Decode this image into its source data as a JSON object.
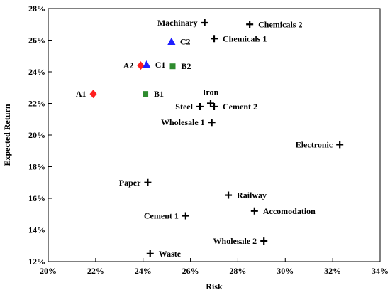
{
  "chart_data": {
    "type": "scatter",
    "title": "",
    "xlabel": "Risk",
    "ylabel": "Expected Return",
    "xlim": [
      0.2,
      0.34
    ],
    "ylim": [
      0.12,
      0.28
    ],
    "x_ticks": [
      "20%",
      "22%",
      "24%",
      "26%",
      "28%",
      "30%",
      "32%",
      "34%"
    ],
    "y_ticks": [
      "12%",
      "14%",
      "16%",
      "18%",
      "20%",
      "22%",
      "24%",
      "26%",
      "28%"
    ],
    "grid": false,
    "legend": "none",
    "points": [
      {
        "label": "Machinary",
        "x": 0.266,
        "y": 0.271,
        "marker": "plus",
        "color": "#000000",
        "label_pos": "left"
      },
      {
        "label": "Chemicals 2",
        "x": 0.285,
        "y": 0.27,
        "marker": "plus",
        "color": "#000000",
        "label_pos": "right"
      },
      {
        "label": "Chemicals 1",
        "x": 0.27,
        "y": 0.261,
        "marker": "plus",
        "color": "#000000",
        "label_pos": "right"
      },
      {
        "label": "C2",
        "x": 0.252,
        "y": 0.259,
        "marker": "triangle",
        "color": "#1f1fff",
        "label_pos": "right"
      },
      {
        "label": "A2",
        "x": 0.239,
        "y": 0.244,
        "marker": "diamond",
        "color": "#ff1f1f",
        "label_pos": "left"
      },
      {
        "label": "C1",
        "x": 0.2415,
        "y": 0.2445,
        "marker": "triangle",
        "color": "#1f1fff",
        "label_pos": "right"
      },
      {
        "label": "B2",
        "x": 0.2525,
        "y": 0.2435,
        "marker": "square",
        "color": "#2e8b2e",
        "label_pos": "right"
      },
      {
        "label": "A1",
        "x": 0.219,
        "y": 0.226,
        "marker": "diamond",
        "color": "#ff1f1f",
        "label_pos": "left"
      },
      {
        "label": "B1",
        "x": 0.241,
        "y": 0.226,
        "marker": "square",
        "color": "#2e8b2e",
        "label_pos": "right"
      },
      {
        "label": "Iron",
        "x": 0.2685,
        "y": 0.22,
        "marker": "plus",
        "color": "#000000",
        "label_pos": "above"
      },
      {
        "label": "Steel",
        "x": 0.264,
        "y": 0.218,
        "marker": "plus",
        "color": "#000000",
        "label_pos": "left"
      },
      {
        "label": "Cement 2",
        "x": 0.27,
        "y": 0.218,
        "marker": "plus",
        "color": "#000000",
        "label_pos": "right"
      },
      {
        "label": "Wholesale 1",
        "x": 0.269,
        "y": 0.208,
        "marker": "plus",
        "color": "#000000",
        "label_pos": "left"
      },
      {
        "label": "Electronic",
        "x": 0.323,
        "y": 0.194,
        "marker": "plus",
        "color": "#000000",
        "label_pos": "left"
      },
      {
        "label": "Paper",
        "x": 0.242,
        "y": 0.17,
        "marker": "plus",
        "color": "#000000",
        "label_pos": "left"
      },
      {
        "label": "Railway",
        "x": 0.276,
        "y": 0.162,
        "marker": "plus",
        "color": "#000000",
        "label_pos": "right"
      },
      {
        "label": "Accomodation",
        "x": 0.287,
        "y": 0.152,
        "marker": "plus",
        "color": "#000000",
        "label_pos": "right"
      },
      {
        "label": "Cement 1",
        "x": 0.258,
        "y": 0.149,
        "marker": "plus",
        "color": "#000000",
        "label_pos": "left"
      },
      {
        "label": "Wholesale 2",
        "x": 0.291,
        "y": 0.133,
        "marker": "plus",
        "color": "#000000",
        "label_pos": "left"
      },
      {
        "label": "Waste",
        "x": 0.243,
        "y": 0.125,
        "marker": "plus",
        "color": "#000000",
        "label_pos": "right"
      }
    ]
  }
}
